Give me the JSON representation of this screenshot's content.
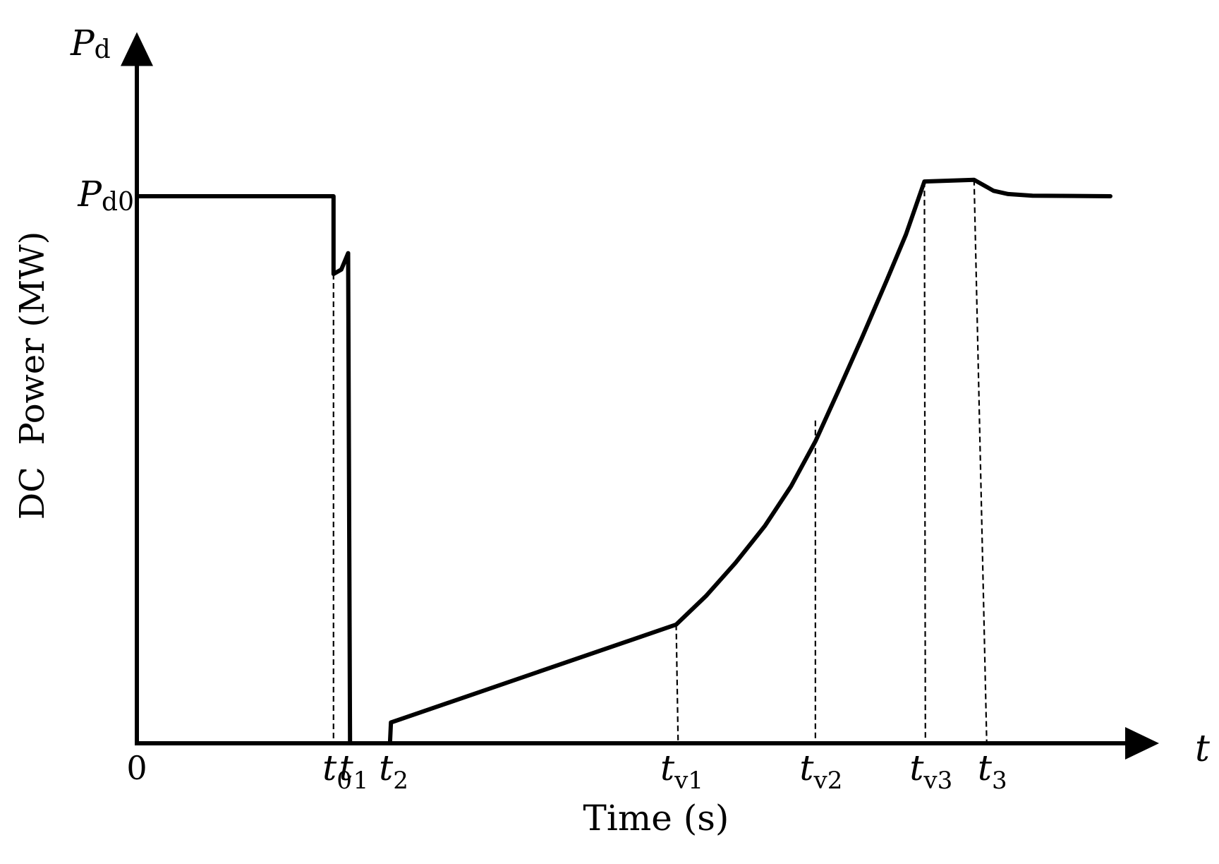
{
  "chart_data": {
    "type": "line",
    "title": "",
    "xlabel": "Time (s)",
    "ylabel": "DC  Power (MW)",
    "x_axis_symbol": "t",
    "y_axis_symbol": {
      "base": "P",
      "sub": "d"
    },
    "origin_label": "0",
    "y_ticks": [
      {
        "value": 1.0,
        "base": "P",
        "sub": "d0"
      }
    ],
    "x_ticks": [
      {
        "value": 0.2,
        "base": "t",
        "sub": "0"
      },
      {
        "value": 0.217,
        "base": "t",
        "sub": "1"
      },
      {
        "value": 0.258,
        "base": "t",
        "sub": "2"
      },
      {
        "value": 0.554,
        "base": "t",
        "sub": "v1"
      },
      {
        "value": 0.697,
        "base": "t",
        "sub": "v2"
      },
      {
        "value": 0.81,
        "base": "t",
        "sub": "v3"
      },
      {
        "value": 0.873,
        "base": "t",
        "sub": "3"
      }
    ],
    "xlim": [
      0,
      1.05
    ],
    "ylim": [
      0,
      1.3
    ],
    "grid": false,
    "series": [
      {
        "points": [
          [
            0.0,
            1.0
          ],
          [
            0.202,
            1.0
          ],
          [
            0.202,
            0.858
          ],
          [
            0.21,
            0.866
          ],
          [
            0.217,
            0.896
          ],
          [
            0.219,
            0.0
          ],
          [
            0.26,
            0.0
          ],
          [
            0.261,
            0.038
          ],
          [
            0.554,
            0.217
          ],
          [
            0.585,
            0.27
          ],
          [
            0.615,
            0.33
          ],
          [
            0.645,
            0.397
          ],
          [
            0.672,
            0.47
          ],
          [
            0.697,
            0.552
          ],
          [
            0.72,
            0.642
          ],
          [
            0.745,
            0.742
          ],
          [
            0.77,
            0.845
          ],
          [
            0.79,
            0.93
          ],
          [
            0.809,
            1.027
          ],
          [
            0.86,
            1.03
          ],
          [
            0.87,
            1.02
          ],
          [
            0.88,
            1.01
          ],
          [
            0.895,
            1.004
          ],
          [
            0.92,
            1.001
          ],
          [
            1.0,
            1.0
          ]
        ]
      }
    ],
    "guides": [
      {
        "x": 0.202,
        "x_end": 0.202,
        "y_top": 0.858
      },
      {
        "x": 0.554,
        "x_end": 0.556,
        "y_top": 0.217
      },
      {
        "x": 0.697,
        "x_end": 0.697,
        "y_top": 0.59
      },
      {
        "x": 0.809,
        "x_end": 0.81,
        "y_top": 1.027
      },
      {
        "x": 0.86,
        "x_end": 0.873,
        "y_top": 1.03
      }
    ]
  }
}
